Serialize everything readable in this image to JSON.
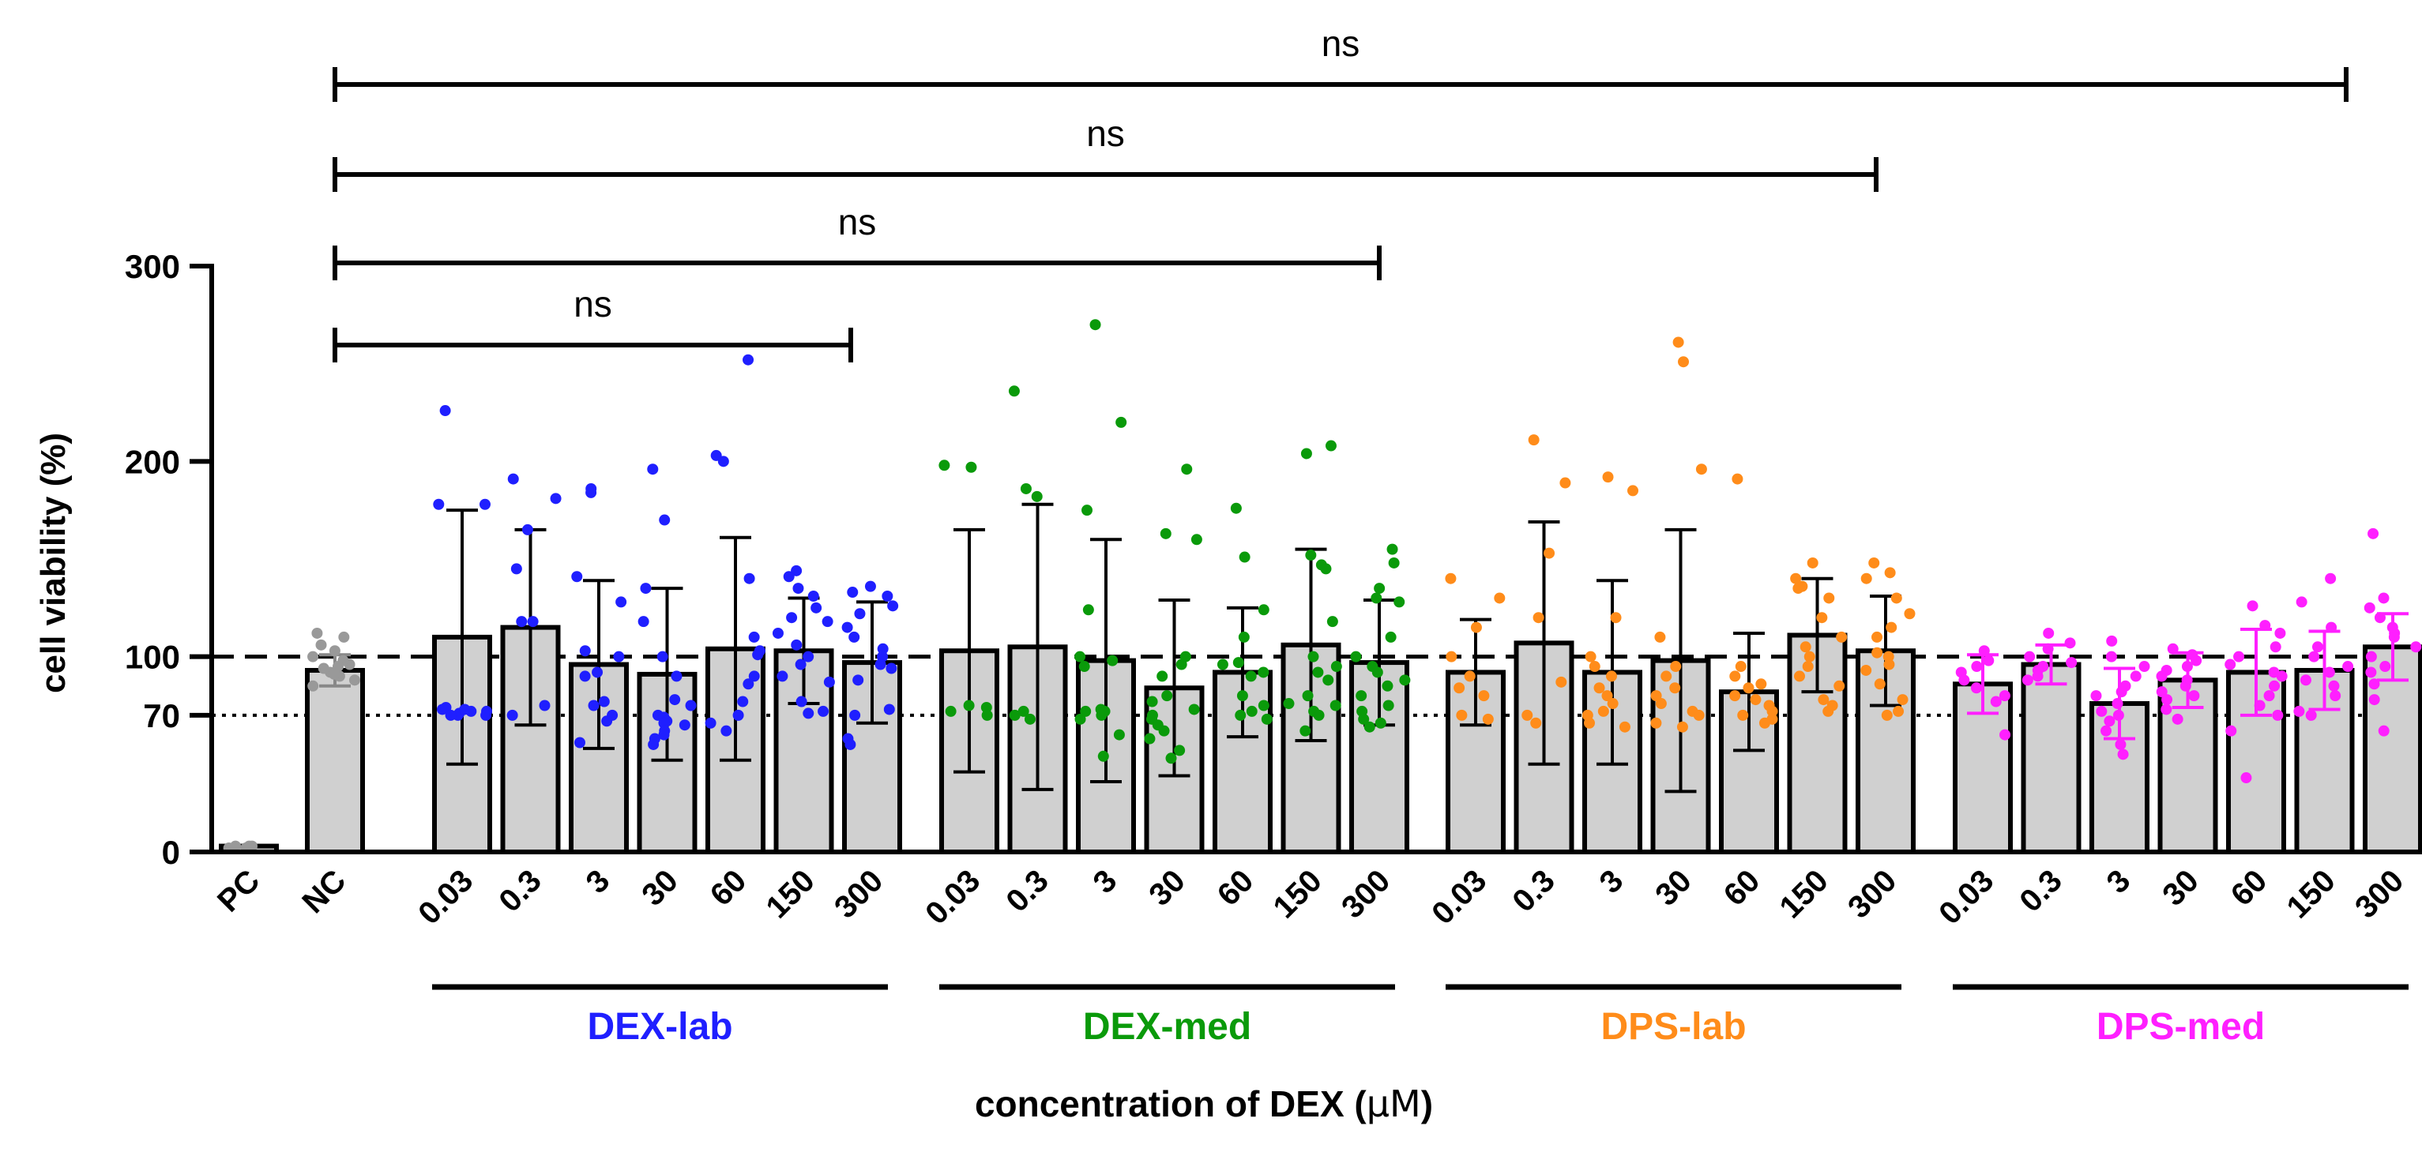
{
  "chart_data": {
    "type": "bar",
    "title": "",
    "ylabel": "cell viability (%)",
    "xlabel_prefix": "concentration of DEX (",
    "xlabel_unit": "μM",
    "xlabel_suffix": ")",
    "xlabel": "concentration of DEX (μM)",
    "ylim": [
      0,
      300
    ],
    "yticks": [
      0,
      70,
      100,
      200,
      300
    ],
    "reference_lines": [
      {
        "value": 100,
        "style": "dashed"
      },
      {
        "value": 70,
        "style": "dotted"
      }
    ],
    "controls": [
      {
        "label": "PC",
        "mean": 3,
        "sd": 0,
        "points": [
          2,
          3,
          2,
          3,
          2,
          3
        ],
        "color": "#999999"
      },
      {
        "label": "NC",
        "mean": 93,
        "sd": 8,
        "points": [
          85,
          88,
          90,
          92,
          94,
          96,
          98,
          100,
          103,
          106,
          110,
          112,
          95,
          91
        ],
        "color": "#999999"
      }
    ],
    "concentrations": [
      "0.03",
      "0.3",
      "3",
      "30",
      "60",
      "150",
      "300"
    ],
    "groups": [
      {
        "name": "DEX-lab",
        "color": "#1f1fff",
        "bars": [
          {
            "conc": "0.03",
            "mean": 110,
            "sd": 65,
            "points": [
              226,
              178,
              178,
              72,
              73,
              71,
              70,
              74,
              70,
              73,
              72,
              70
            ]
          },
          {
            "conc": "0.3",
            "mean": 115,
            "sd": 50,
            "points": [
              191,
              181,
              165,
              145,
              118,
              118,
              70,
              75
            ]
          },
          {
            "conc": "3",
            "mean": 96,
            "sd": 43,
            "points": [
              186,
              184,
              141,
              128,
              103,
              100,
              92,
              90,
              77,
              75,
              70,
              67,
              56
            ]
          },
          {
            "conc": "30",
            "mean": 91,
            "sd": 44,
            "points": [
              196,
              170,
              135,
              118,
              100,
              90,
              78,
              75,
              70,
              69,
              67,
              66,
              65,
              62,
              60,
              58,
              55
            ]
          },
          {
            "conc": "60",
            "mean": 104,
            "sd": 57,
            "points": [
              252,
              203,
              200,
              140,
              110,
              103,
              101,
              90,
              86,
              77,
              70,
              66,
              62
            ]
          },
          {
            "conc": "150",
            "mean": 103,
            "sd": 27,
            "points": [
              144,
              141,
              135,
              131,
              125,
              120,
              118,
              112,
              106,
              100,
              96,
              90,
              87,
              77,
              72,
              71
            ]
          },
          {
            "conc": "300",
            "mean": 97,
            "sd": 31,
            "points": [
              136,
              133,
              131,
              126,
              122,
              115,
              110,
              104,
              100,
              96,
              94,
              88,
              73,
              70,
              58,
              55
            ]
          }
        ]
      },
      {
        "name": "DEX-med",
        "color": "#0a9a0a",
        "bars": [
          {
            "conc": "0.03",
            "mean": 103,
            "sd": 62,
            "points": [
              198,
              197,
              74,
              70,
              72,
              75
            ]
          },
          {
            "conc": "0.3",
            "mean": 105,
            "sd": 73,
            "points": [
              236,
              186,
              182,
              70,
              68,
              72
            ]
          },
          {
            "conc": "3",
            "mean": 98,
            "sd": 62,
            "points": [
              270,
              220,
              175,
              124,
              100,
              98,
              95,
              73,
              72,
              72,
              70,
              68,
              60,
              49
            ]
          },
          {
            "conc": "30",
            "mean": 84,
            "sd": 45,
            "points": [
              196,
              163,
              160,
              100,
              96,
              90,
              80,
              77,
              73,
              70,
              68,
              65,
              62,
              58,
              52,
              48
            ]
          },
          {
            "conc": "60",
            "mean": 92,
            "sd": 33,
            "points": [
              176,
              151,
              124,
              110,
              97,
              96,
              92,
              90,
              80,
              75,
              72,
              70,
              68
            ]
          },
          {
            "conc": "150",
            "mean": 106,
            "sd": 49,
            "points": [
              208,
              204,
              152,
              147,
              145,
              118,
              100,
              95,
              92,
              88,
              80,
              76,
              75,
              72,
              70,
              62
            ]
          },
          {
            "conc": "300",
            "mean": 97,
            "sd": 32,
            "points": [
              155,
              148,
              135,
              130,
              128,
              110,
              100,
              95,
              92,
              88,
              85,
              80,
              75,
              72,
              68,
              66,
              64
            ]
          }
        ]
      },
      {
        "name": "DPS-lab",
        "color": "#ff8c1a",
        "bars": [
          {
            "conc": "0.03",
            "mean": 92,
            "sd": 27,
            "points": [
              140,
              130,
              115,
              100,
              90,
              84,
              80,
              70,
              68
            ]
          },
          {
            "conc": "0.3",
            "mean": 107,
            "sd": 62,
            "points": [
              211,
              189,
              153,
              120,
              87,
              70,
              66
            ]
          },
          {
            "conc": "3",
            "mean": 92,
            "sd": 47,
            "points": [
              192,
              185,
              120,
              100,
              95,
              90,
              84,
              80,
              76,
              72,
              70,
              66,
              64
            ]
          },
          {
            "conc": "30",
            "mean": 98,
            "sd": 67,
            "points": [
              261,
              251,
              196,
              110,
              95,
              90,
              84,
              80,
              76,
              72,
              70,
              66,
              64
            ]
          },
          {
            "conc": "60",
            "mean": 82,
            "sd": 30,
            "points": [
              191,
              95,
              90,
              86,
              84,
              80,
              78,
              75,
              72,
              70,
              68,
              66
            ]
          },
          {
            "conc": "150",
            "mean": 111,
            "sd": 29,
            "points": [
              148,
              140,
              136,
              135,
              130,
              120,
              110,
              105,
              100,
              95,
              90,
              85,
              78,
              75,
              72
            ]
          },
          {
            "conc": "300",
            "mean": 103,
            "sd": 28,
            "points": [
              148,
              143,
              140,
              130,
              122,
              115,
              110,
              102,
              100,
              96,
              93,
              86,
              78,
              72,
              70
            ]
          }
        ]
      },
      {
        "name": "DPS-med",
        "color": "#ff1fff",
        "bars": [
          {
            "conc": "0.03",
            "mean": 86,
            "sd": 15,
            "points": [
              103,
              98,
              95,
              92,
              88,
              84,
              80,
              77,
              60
            ]
          },
          {
            "conc": "0.3",
            "mean": 96,
            "sd": 10,
            "points": [
              112,
              107,
              104,
              100,
              97,
              95,
              93,
              90,
              88
            ]
          },
          {
            "conc": "3",
            "mean": 76,
            "sd": 18,
            "points": [
              108,
              100,
              95,
              90,
              85,
              82,
              80,
              76,
              72,
              70,
              67,
              62,
              55,
              50
            ]
          },
          {
            "conc": "30",
            "mean": 88,
            "sd": 14,
            "points": [
              104,
              101,
              98,
              95,
              93,
              90,
              88,
              85,
              82,
              80,
              78,
              73,
              68
            ]
          },
          {
            "conc": "60",
            "mean": 92,
            "sd": 22,
            "points": [
              126,
              116,
              112,
              105,
              100,
              96,
              92,
              90,
              85,
              80,
              75,
              70,
              62,
              38
            ]
          },
          {
            "conc": "150",
            "mean": 93,
            "sd": 20,
            "points": [
              140,
              128,
              115,
              105,
              100,
              95,
              92,
              88,
              85,
              80,
              72,
              70
            ]
          },
          {
            "conc": "300",
            "mean": 105,
            "sd": 17,
            "points": [
              163,
              130,
              125,
              120,
              115,
              112,
              110,
              105,
              100,
              95,
              92,
              86,
              78,
              62
            ]
          }
        ]
      }
    ],
    "significance_brackets": [
      {
        "from": "NC",
        "to": "DEX-lab 300",
        "label": "ns"
      },
      {
        "from": "NC",
        "to": "DEX-med 300",
        "label": "ns"
      },
      {
        "from": "NC",
        "to": "DPS-lab 300",
        "label": "ns"
      },
      {
        "from": "NC",
        "to": "DPS-med 300",
        "label": "ns"
      }
    ]
  }
}
